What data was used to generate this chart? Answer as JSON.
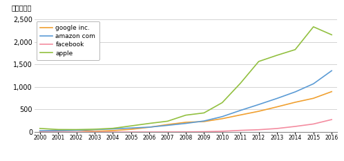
{
  "years": [
    2000,
    2001,
    2002,
    2003,
    2004,
    2005,
    2006,
    2007,
    2008,
    2009,
    2010,
    2011,
    2012,
    2013,
    2014,
    2015,
    2016
  ],
  "google": [
    19,
    34,
    44,
    15,
    32,
    60,
    106,
    166,
    216,
    232,
    296,
    379,
    460,
    558,
    660,
    748,
    896
  ],
  "amazon": [
    27,
    31,
    38,
    53,
    69,
    89,
    108,
    148,
    191,
    245,
    342,
    480,
    610,
    745,
    890,
    1070,
    1360
  ],
  "facebook": [
    0,
    0,
    0,
    0,
    0,
    0,
    0.4,
    1.5,
    2.7,
    7.7,
    17,
    37,
    51,
    78,
    124,
    178,
    276
  ],
  "apple": [
    80,
    56,
    54,
    62,
    82,
    136,
    191,
    240,
    374,
    424,
    652,
    1083,
    1565,
    1702,
    1828,
    2334,
    2157
  ],
  "colors": {
    "google": "#f0a030",
    "amazon": "#5b9bd5",
    "facebook": "#f48ca0",
    "apple": "#92c040"
  },
  "legend_labels": [
    "google inc.",
    "amazon com",
    "facebook",
    "apple"
  ],
  "ylabel": "（億ドル）",
  "ylim": [
    0,
    2500
  ],
  "yticks": [
    0,
    500,
    1000,
    1500,
    2000,
    2500
  ],
  "xlim_min": 2000,
  "xlim_max": 2016,
  "background_color": "#ffffff",
  "grid_color": "#cccccc"
}
